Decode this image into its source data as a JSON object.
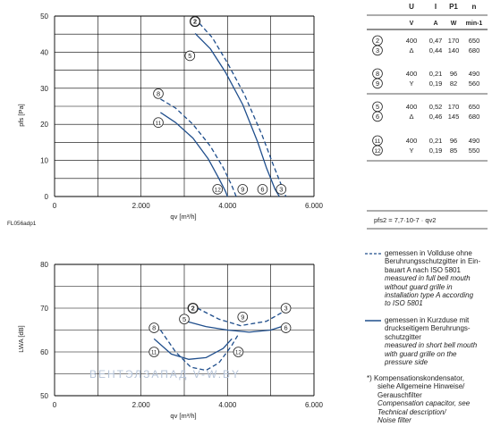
{
  "chart_data": [
    {
      "type": "line",
      "xlabel": "qv [m³/h]",
      "ylabel": "pfs [Pa]",
      "xlim": [
        0,
        6000
      ],
      "ylim": [
        0,
        50
      ],
      "xticks": [
        "0",
        "2.000",
        "4.000",
        "6.000"
      ],
      "yticks": [
        "0",
        "10",
        "20",
        "30",
        "40",
        "50"
      ],
      "grid": true,
      "series": [
        {
          "name": "2",
          "style": "dashed",
          "points": [
            [
              3350,
              48
            ],
            [
              3650,
              44
            ],
            [
              4000,
              37
            ],
            [
              4400,
              28
            ],
            [
              4800,
              17
            ],
            [
              5050,
              9
            ],
            [
              5250,
              3
            ],
            [
              5350,
              0
            ]
          ]
        },
        {
          "name": "5",
          "style": "solid",
          "points": [
            [
              3250,
              45.2
            ],
            [
              3600,
              41
            ],
            [
              3950,
              34.5
            ],
            [
              4350,
              25.5
            ],
            [
              4700,
              15
            ],
            [
              4900,
              8
            ],
            [
              5100,
              2
            ],
            [
              5200,
              0
            ]
          ]
        },
        {
          "name": "8",
          "style": "dashed",
          "points": [
            [
              2450,
              27
            ],
            [
              2800,
              24.5
            ],
            [
              3200,
              20
            ],
            [
              3600,
              14
            ],
            [
              3900,
              8
            ],
            [
              4100,
              3
            ],
            [
              4200,
              0
            ]
          ]
        },
        {
          "name": "11",
          "style": "solid",
          "points": [
            [
              2450,
              23.3
            ],
            [
              2800,
              20.5
            ],
            [
              3200,
              16.2
            ],
            [
              3550,
              10.5
            ],
            [
              3800,
              5
            ],
            [
              3950,
              1.5
            ],
            [
              4000,
              0
            ]
          ]
        }
      ],
      "end_markers": [
        "12",
        "9",
        "6",
        "3"
      ],
      "figure_code": "FL056adp1"
    },
    {
      "type": "line",
      "xlabel": "qv [m³/h]",
      "ylabel": "LWA [dB]",
      "xlim": [
        0,
        6000
      ],
      "ylim": [
        50,
        80
      ],
      "xticks": [
        "0",
        "2.000",
        "4.000",
        "6.000"
      ],
      "yticks": [
        "50",
        "60",
        "70",
        "80"
      ],
      "grid": true,
      "series": [
        {
          "name": "2-3",
          "style": "dashed",
          "points": [
            [
              3300,
              70
            ],
            [
              3800,
              67.5
            ],
            [
              4300,
              66
            ],
            [
              4900,
              67
            ],
            [
              5350,
              69.5
            ]
          ]
        },
        {
          "name": "5-6",
          "style": "solid",
          "points": [
            [
              3050,
              67
            ],
            [
              3500,
              65.8
            ],
            [
              4000,
              65
            ],
            [
              4500,
              64.5
            ],
            [
              5000,
              65
            ],
            [
              5250,
              65.8
            ]
          ]
        },
        {
          "name": "8-9",
          "style": "dashed",
          "points": [
            [
              2450,
              65
            ],
            [
              2800,
              60
            ],
            [
              3150,
              56.5
            ],
            [
              3500,
              55.8
            ],
            [
              3800,
              57.5
            ],
            [
              4100,
              61.5
            ],
            [
              4250,
              64
            ]
          ]
        },
        {
          "name": "11-12",
          "style": "solid",
          "points": [
            [
              2300,
              63
            ],
            [
              2700,
              59.5
            ],
            [
              3100,
              58.3
            ],
            [
              3500,
              58.7
            ],
            [
              3900,
              60.8
            ],
            [
              4100,
              63
            ]
          ]
        }
      ],
      "markers": [
        "2",
        "5",
        "9",
        "3",
        "8",
        "6",
        "11",
        "12"
      ]
    }
  ],
  "table": {
    "headers": [
      "U",
      "I",
      "P1",
      "n"
    ],
    "units": [
      "V",
      "A",
      "W",
      "min-1"
    ],
    "groups": [
      [
        {
          "id": "2",
          "u": "400",
          "i": "0,47",
          "p": "170",
          "n": "650"
        },
        {
          "id": "3",
          "u": "Δ",
          "i": "0,44",
          "p": "140",
          "n": "680"
        }
      ],
      [
        {
          "id": "8",
          "u": "400",
          "i": "0,21",
          "p": "96",
          "n": "490"
        },
        {
          "id": "9",
          "u": "Y",
          "i": "0,19",
          "p": "82",
          "n": "560"
        }
      ],
      [
        {
          "id": "5",
          "u": "400",
          "i": "0,52",
          "p": "170",
          "n": "650"
        },
        {
          "id": "6",
          "u": "Δ",
          "i": "0,46",
          "p": "145",
          "n": "680"
        }
      ],
      [
        {
          "id": "11",
          "u": "400",
          "i": "0,21",
          "p": "96",
          "n": "490"
        },
        {
          "id": "12",
          "u": "Y",
          "i": "0,19",
          "p": "85",
          "n": "550"
        }
      ]
    ],
    "formula": "pfs2 = 7,7·10-7 · qv2"
  },
  "legend": {
    "dashed_de": [
      "gemessen in Vollduse ohne",
      "Beruhrungsschutzgitter in Ein-",
      "bauart A nach ISO 5801"
    ],
    "dashed_en": [
      "measured in full bell mouth",
      "without guard grille in",
      "installation type A according",
      "to ISO 5801"
    ],
    "solid_de": [
      "gemessen in Kurzduse mit",
      "druckseitigem Beruhrungs-",
      "schutzgitter"
    ],
    "solid_en": [
      "measured in short bell mouth",
      "with guard grille on the",
      "pressure side"
    ],
    "note_de": [
      "*)  Kompensationskondensator,",
      "siehe Allgemeine Hinweise/",
      "Gerauschfilter"
    ],
    "note_en": [
      "Compensation capacitor, see",
      "Technical description/",
      "Noise filter"
    ]
  },
  "watermark": "ВЕНТЭЛЗАПАД          V-W.BY",
  "colors": {
    "curve": "#1f4e8c",
    "grid": "#000000",
    "text": "#222222"
  }
}
